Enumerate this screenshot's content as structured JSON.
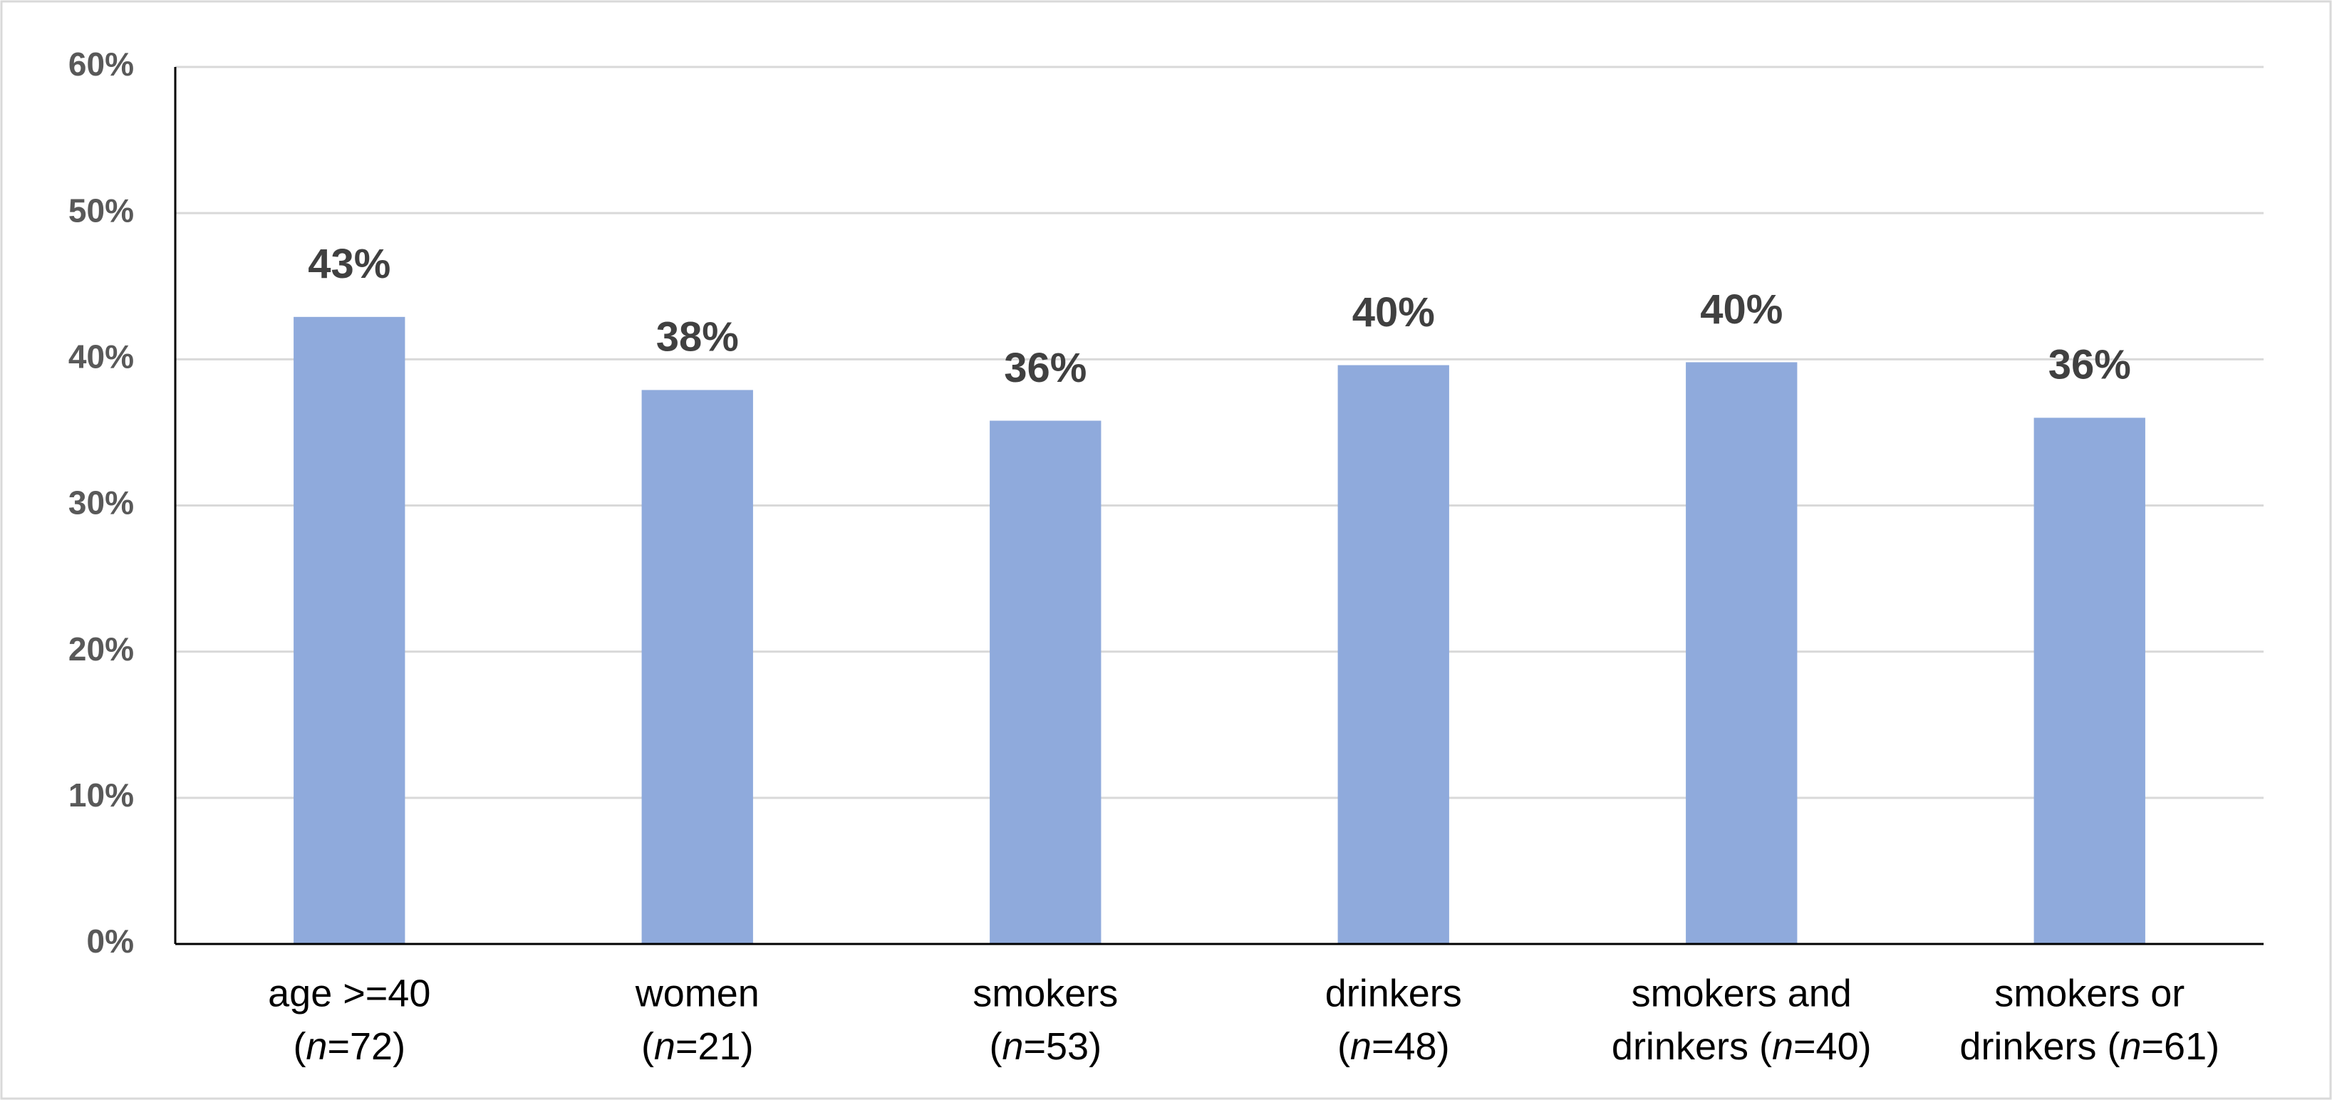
{
  "chart_data": {
    "type": "bar",
    "categories": [
      [
        "age >=40",
        "(n=72)"
      ],
      [
        "women",
        "(n=21)"
      ],
      [
        "smokers",
        "(n=53)"
      ],
      [
        "drinkers",
        "(n=48)"
      ],
      [
        "smokers and",
        "drinkers (n=40)"
      ],
      [
        "smokers or",
        "drinkers (n=61)"
      ]
    ],
    "values": [
      42.9,
      37.9,
      35.8,
      39.6,
      39.8,
      36.0
    ],
    "value_labels": [
      "43%",
      "38%",
      "36%",
      "40%",
      "40%",
      "36%"
    ],
    "color": "#8faadc",
    "ylim": [
      0,
      60
    ],
    "yticks": [
      {
        "value": 0,
        "label": "0%"
      },
      {
        "value": 10,
        "label": "10%"
      },
      {
        "value": 20,
        "label": "20%"
      },
      {
        "value": 30,
        "label": "30%"
      },
      {
        "value": 40,
        "label": "40%"
      },
      {
        "value": 50,
        "label": "50%"
      },
      {
        "value": 60,
        "label": "60%"
      }
    ],
    "grid": true
  }
}
